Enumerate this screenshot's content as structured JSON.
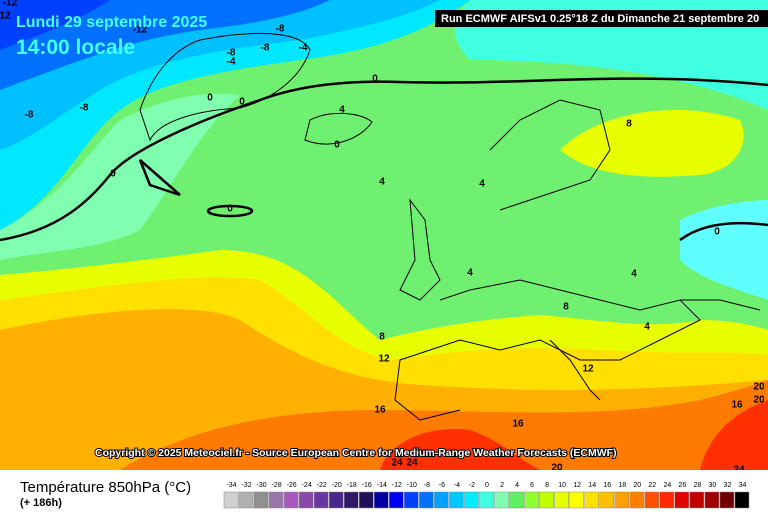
{
  "header": {
    "date": "Lundi 29 septembre 2025",
    "time": "14:00 locale",
    "run": "Run ECMWF AIFSv1 0.25°18 Z du Dimanche 21 septembre 20"
  },
  "copyright": "Copyright © 2025 Meteociel.fr - Source European Centre for Medium-Range Weather Forecasts (ECMWF)",
  "footer": {
    "title": "Température 850hPa (°C)",
    "subtitle": "(+ 186h)"
  },
  "legend": {
    "labels": [
      -34,
      -32,
      -30,
      -28,
      -26,
      -24,
      -22,
      -20,
      -18,
      -16,
      -14,
      -12,
      -10,
      -8,
      -6,
      -4,
      -2,
      0,
      2,
      4,
      6,
      8,
      10,
      12,
      14,
      16,
      18,
      20,
      22,
      24,
      26,
      28,
      30,
      32,
      34
    ],
    "colors": [
      "#d0d0d0",
      "#b0b0b0",
      "#909090",
      "#9878a8",
      "#a858c0",
      "#8848a8",
      "#6838a0",
      "#482888",
      "#301868",
      "#201058",
      "#0000a0",
      "#0000f0",
      "#0040ff",
      "#0070ff",
      "#00a0ff",
      "#00c8ff",
      "#00eeff",
      "#40ffe0",
      "#80ffb0",
      "#60f060",
      "#90ff30",
      "#c0ff00",
      "#e8ff00",
      "#ffff00",
      "#ffe000",
      "#ffc000",
      "#ffa000",
      "#ff8000",
      "#ff5000",
      "#ff2800",
      "#e00000",
      "#c00000",
      "#a00000",
      "#700000",
      "#000000"
    ]
  },
  "contour_labels": [
    "-12",
    "12",
    "-8",
    "-12",
    "-8",
    "-8",
    "-4",
    "-4",
    "-8",
    "-8",
    "0",
    "0",
    "0",
    "4",
    "0",
    "0",
    "0",
    "4",
    "4",
    "8",
    "0",
    "4",
    "4",
    "8",
    "4",
    "8",
    "12",
    "12",
    "16",
    "16",
    "16",
    "20",
    "20",
    "24",
    "24",
    "20",
    "24"
  ]
}
